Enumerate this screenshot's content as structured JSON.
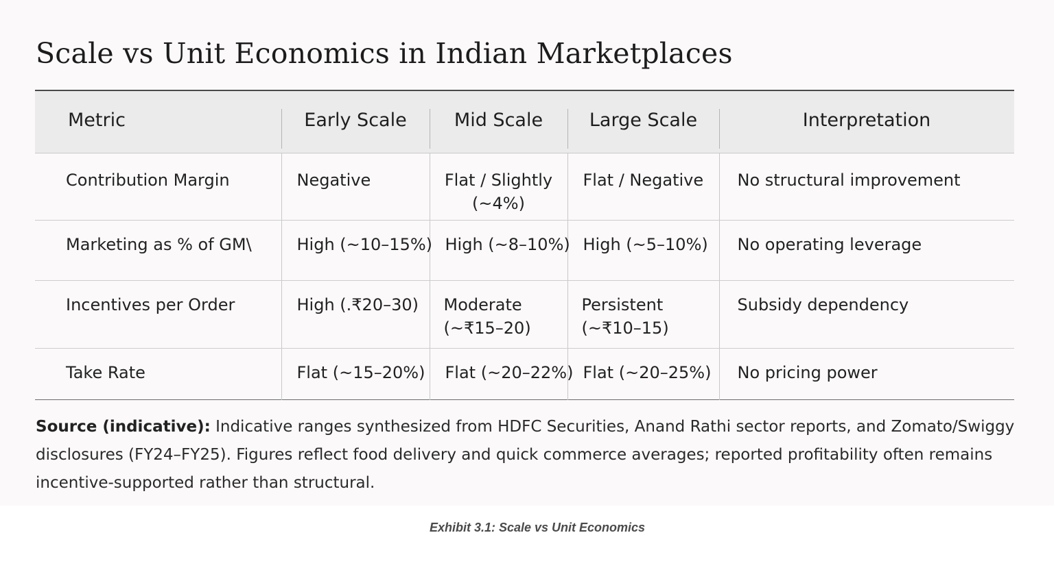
{
  "title": "Scale vs Unit Economics in Indian Marketplaces",
  "table": {
    "headers": [
      "Metric",
      "Early Scale",
      "Mid Scale",
      "Large Scale",
      "Interpretation"
    ],
    "rows": [
      [
        "Contribution Margin",
        "Negative",
        "Flat / Slightly (~4%)",
        "Flat / Negative",
        "No structural improvement"
      ],
      [
        "Marketing as % of GM\\",
        "High (~10–15%)",
        "High (~8–10%)",
        "High (~5–10%)",
        "No operating leverage"
      ],
      [
        "Incentives per Order",
        "High (.₹20–30)",
        "Moderate (~₹15–20)",
        "Persistent (~₹10–15)",
        "Subsidy dependency"
      ],
      [
        "Take Rate",
        "Flat (~15–20%)",
        "Flat (~20–22%)",
        "Flat (~20–25%)",
        "No pricing power"
      ]
    ]
  },
  "source": {
    "label": "Source (indicative):",
    "text": "Indicative ranges synthesized from HDFC Securities, Anand Rathi sector reports, and Zomato/Swiggy disclosures (FY24–FY25). Figures reflect food delivery and quick commerce averages; reported profitability often remains incentive-supported rather than structural."
  },
  "caption": "Exhibit 3.1: Scale vs Unit Economics"
}
